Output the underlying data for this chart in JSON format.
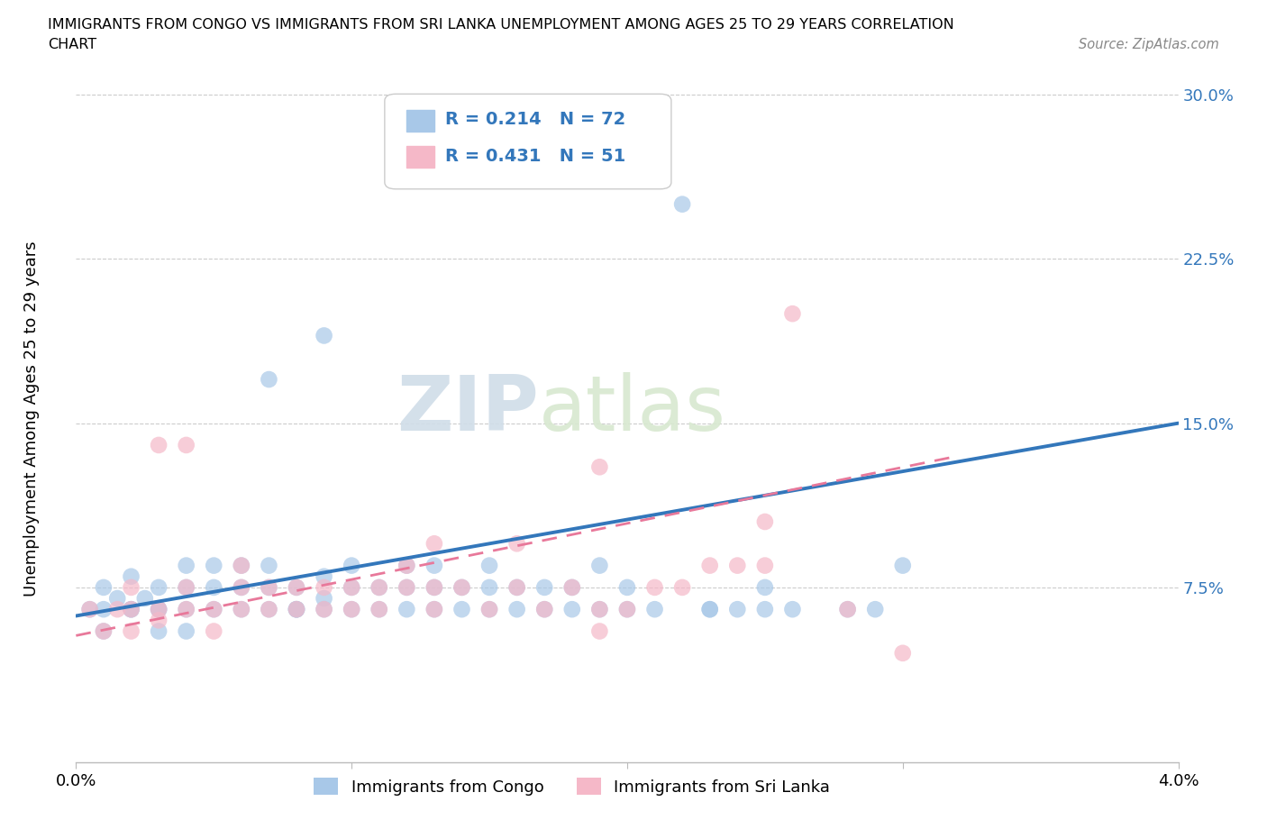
{
  "title_line1": "IMMIGRANTS FROM CONGO VS IMMIGRANTS FROM SRI LANKA UNEMPLOYMENT AMONG AGES 25 TO 29 YEARS CORRELATION",
  "title_line2": "CHART",
  "source": "Source: ZipAtlas.com",
  "ylabel": "Unemployment Among Ages 25 to 29 years",
  "watermark_zip": "ZIP",
  "watermark_atlas": "atlas",
  "legend1_label_r": "R = 0.214",
  "legend1_label_n": "N = 72",
  "legend2_label_r": "R = 0.431",
  "legend2_label_n": "N = 51",
  "congo_color": "#a8c8e8",
  "srilanka_color": "#f5b8c8",
  "congo_line_color": "#3377bb",
  "srilanka_line_color": "#e8789a",
  "xmin": 0.0,
  "xmax": 0.04,
  "ymin": -0.005,
  "ymax": 0.305,
  "yticks": [
    0.0,
    0.075,
    0.15,
    0.225,
    0.3
  ],
  "ytick_labels": [
    "",
    "7.5%",
    "15.0%",
    "22.5%",
    "30.0%"
  ],
  "xticks": [
    0.0,
    0.01,
    0.02,
    0.03,
    0.04
  ],
  "xtick_labels": [
    "0.0%",
    "",
    "",
    "",
    "4.0%"
  ],
  "congo_scatter_x": [
    0.0005,
    0.001,
    0.001,
    0.0015,
    0.002,
    0.002,
    0.0025,
    0.003,
    0.003,
    0.003,
    0.004,
    0.004,
    0.004,
    0.004,
    0.005,
    0.005,
    0.005,
    0.006,
    0.006,
    0.006,
    0.007,
    0.007,
    0.007,
    0.007,
    0.008,
    0.008,
    0.009,
    0.009,
    0.009,
    0.01,
    0.01,
    0.01,
    0.011,
    0.011,
    0.012,
    0.012,
    0.013,
    0.013,
    0.013,
    0.014,
    0.014,
    0.015,
    0.015,
    0.015,
    0.016,
    0.016,
    0.017,
    0.017,
    0.018,
    0.018,
    0.019,
    0.02,
    0.02,
    0.021,
    0.022,
    0.023,
    0.024,
    0.025,
    0.025,
    0.026,
    0.028,
    0.029,
    0.012,
    0.008,
    0.019,
    0.023,
    0.008,
    0.009,
    0.003,
    0.001,
    0.002,
    0.03
  ],
  "congo_scatter_y": [
    0.065,
    0.055,
    0.075,
    0.07,
    0.065,
    0.08,
    0.07,
    0.055,
    0.065,
    0.075,
    0.055,
    0.065,
    0.075,
    0.085,
    0.065,
    0.075,
    0.085,
    0.065,
    0.075,
    0.085,
    0.065,
    0.075,
    0.085,
    0.17,
    0.065,
    0.075,
    0.07,
    0.08,
    0.19,
    0.065,
    0.075,
    0.085,
    0.065,
    0.075,
    0.065,
    0.075,
    0.065,
    0.075,
    0.085,
    0.065,
    0.075,
    0.065,
    0.075,
    0.085,
    0.065,
    0.075,
    0.065,
    0.075,
    0.065,
    0.075,
    0.065,
    0.065,
    0.075,
    0.065,
    0.25,
    0.065,
    0.065,
    0.065,
    0.075,
    0.065,
    0.065,
    0.065,
    0.085,
    0.065,
    0.085,
    0.065,
    0.065,
    0.065,
    0.065,
    0.065,
    0.065,
    0.085
  ],
  "srilanka_scatter_x": [
    0.0005,
    0.001,
    0.0015,
    0.002,
    0.002,
    0.003,
    0.003,
    0.003,
    0.004,
    0.004,
    0.005,
    0.005,
    0.006,
    0.006,
    0.006,
    0.007,
    0.007,
    0.008,
    0.008,
    0.009,
    0.009,
    0.01,
    0.01,
    0.011,
    0.011,
    0.012,
    0.013,
    0.013,
    0.014,
    0.015,
    0.016,
    0.017,
    0.018,
    0.019,
    0.019,
    0.02,
    0.021,
    0.022,
    0.023,
    0.024,
    0.025,
    0.026,
    0.028,
    0.002,
    0.004,
    0.012,
    0.013,
    0.016,
    0.019,
    0.025,
    0.03
  ],
  "srilanka_scatter_y": [
    0.065,
    0.055,
    0.065,
    0.055,
    0.065,
    0.06,
    0.065,
    0.14,
    0.065,
    0.075,
    0.055,
    0.065,
    0.065,
    0.075,
    0.085,
    0.065,
    0.075,
    0.065,
    0.075,
    0.065,
    0.075,
    0.065,
    0.075,
    0.065,
    0.075,
    0.075,
    0.065,
    0.075,
    0.075,
    0.065,
    0.075,
    0.065,
    0.075,
    0.065,
    0.13,
    0.065,
    0.075,
    0.075,
    0.085,
    0.085,
    0.085,
    0.2,
    0.065,
    0.075,
    0.14,
    0.085,
    0.095,
    0.095,
    0.055,
    0.105,
    0.045
  ],
  "congo_trend_x": [
    0.0,
    0.04
  ],
  "congo_trend_y": [
    0.062,
    0.15
  ],
  "srilanka_trend_x": [
    0.0,
    0.032
  ],
  "srilanka_trend_y": [
    0.053,
    0.135
  ],
  "bottom_legend_congo": "Immigrants from Congo",
  "bottom_legend_srilanka": "Immigrants from Sri Lanka"
}
